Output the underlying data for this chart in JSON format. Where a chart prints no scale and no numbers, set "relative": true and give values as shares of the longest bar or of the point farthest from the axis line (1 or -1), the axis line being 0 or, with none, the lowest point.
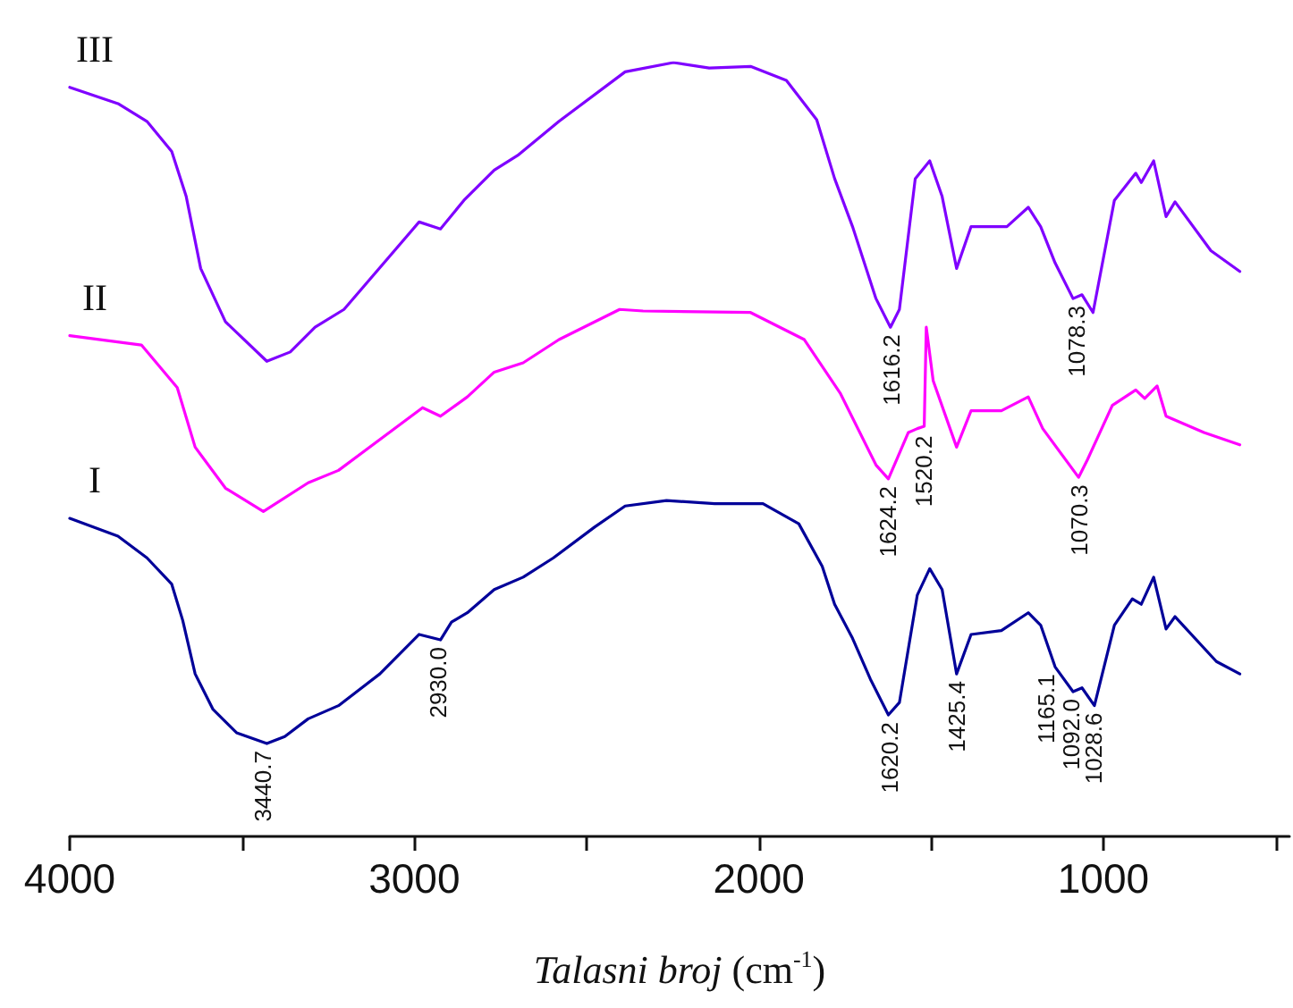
{
  "chart_data": {
    "type": "line",
    "relative": true,
    "xlabel": "Talasni broj (cm$^{-1}$)",
    "xlim": [
      4000,
      460
    ],
    "xticks": [
      4000,
      {
        "value": 3500,
        "label": null
      },
      3000,
      {
        "value": 2500,
        "label": null
      },
      2000,
      {
        "value": 1500,
        "label": null
      },
      1000,
      {
        "value": 500,
        "label": null
      }
    ],
    "grid": false,
    "legend": false,
    "marker": "none",
    "line_style": "solid",
    "series": [
      {
        "name": "III",
        "color": "#7f00ff",
        "x": [
          4000,
          3860,
          3776,
          3704,
          3662,
          3620,
          3548,
          3428,
          3360,
          3288,
          3204,
          2986,
          2924,
          2856,
          2768,
          2700,
          2580,
          2388,
          2248,
          2144,
          2024,
          1920,
          1832,
          1780,
          1728,
          1660,
          1618,
          1592,
          1546,
          1504,
          1468,
          1426,
          1384,
          1280,
          1218,
          1182,
          1140,
          1088,
          1062,
          1030,
          968,
          906,
          890,
          854,
          818,
          792,
          688,
          604
        ],
        "values": [
          0.968,
          0.947,
          0.924,
          0.885,
          0.827,
          0.734,
          0.665,
          0.614,
          0.626,
          0.658,
          0.681,
          0.794,
          0.785,
          0.822,
          0.861,
          0.88,
          0.924,
          0.988,
          1,
          0.993,
          0.995,
          0.977,
          0.926,
          0.85,
          0.788,
          0.695,
          0.658,
          0.681,
          0.85,
          0.873,
          0.827,
          0.734,
          0.788,
          0.788,
          0.813,
          0.788,
          0.741,
          0.695,
          0.7,
          0.677,
          0.822,
          0.857,
          0.845,
          0.873,
          0.801,
          0.82,
          0.757,
          0.73
        ]
      },
      {
        "name": "II",
        "color": "#ff00ff",
        "x": [
          4000,
          3792,
          3688,
          3636,
          3548,
          3438,
          3308,
          3220,
          2976,
          2924,
          2846,
          2768,
          2684,
          2580,
          2404,
          2336,
          2024,
          1868,
          1764,
          1660,
          1624,
          1566,
          1540,
          1520,
          1514,
          1494,
          1426,
          1384,
          1296,
          1218,
          1176,
          1072,
          1046,
          974,
          906,
          880,
          844,
          818,
          708,
          604
        ],
        "values": [
          0.647,
          0.635,
          0.58,
          0.503,
          0.45,
          0.42,
          0.457,
          0.473,
          0.554,
          0.543,
          0.568,
          0.6,
          0.612,
          0.642,
          0.681,
          0.679,
          0.677,
          0.642,
          0.573,
          0.48,
          0.462,
          0.522,
          0.527,
          0.53,
          0.658,
          0.589,
          0.503,
          0.55,
          0.55,
          0.568,
          0.527,
          0.464,
          0.487,
          0.557,
          0.577,
          0.566,
          0.582,
          0.543,
          0.522,
          0.506
        ]
      },
      {
        "name": "I",
        "color": "#000099",
        "x": [
          4000,
          3860,
          3776,
          3704,
          3672,
          3636,
          3584,
          3516,
          3428,
          3376,
          3308,
          3220,
          3100,
          2986,
          2924,
          2892,
          2846,
          2768,
          2684,
          2596,
          2476,
          2388,
          2268,
          2128,
          1988,
          1884,
          1816,
          1780,
          1728,
          1676,
          1624,
          1592,
          1540,
          1504,
          1468,
          1426,
          1384,
          1296,
          1218,
          1182,
          1140,
          1088,
          1062,
          1026,
          968,
          916,
          890,
          854,
          818,
          792,
          672,
          604
        ],
        "values": [
          0.411,
          0.388,
          0.36,
          0.326,
          0.279,
          0.21,
          0.164,
          0.134,
          0.12,
          0.129,
          0.152,
          0.169,
          0.21,
          0.261,
          0.254,
          0.277,
          0.289,
          0.319,
          0.335,
          0.36,
          0.4,
          0.427,
          0.434,
          0.43,
          0.43,
          0.404,
          0.349,
          0.3,
          0.256,
          0.203,
          0.157,
          0.173,
          0.312,
          0.346,
          0.319,
          0.21,
          0.261,
          0.266,
          0.289,
          0.273,
          0.219,
          0.187,
          0.192,
          0.169,
          0.273,
          0.307,
          0.3,
          0.335,
          0.268,
          0.284,
          0.226,
          0.21
        ]
      }
    ],
    "annotations": [
      {
        "text": "1616.2",
        "x": 1616.2,
        "y": 0.658
      },
      {
        "text": "1078.3",
        "x": 1078.3,
        "y": 0.695
      },
      {
        "text": "1624.2",
        "x": 1624.2,
        "y": 0.462
      },
      {
        "text": "1520.2",
        "x": 1520.2,
        "y": 0.53
      },
      {
        "text": "1070.3",
        "x": 1070.3,
        "y": 0.464
      },
      {
        "text": "3440.7",
        "x": 3440.7,
        "y": 0.12
      },
      {
        "text": "2930.0",
        "x": 2930.0,
        "y": 0.254
      },
      {
        "text": "1620.2",
        "x": 1620.2,
        "y": 0.157
      },
      {
        "text": "1425.4",
        "x": 1425.4,
        "y": 0.21
      },
      {
        "text": "1165.1",
        "x": 1165.1,
        "y": 0.24
      },
      {
        "text": "1092.0",
        "x": 1092.0,
        "y": 0.187
      },
      {
        "text": "1028.6",
        "x": 1028.6,
        "y": 0.169
      }
    ]
  }
}
